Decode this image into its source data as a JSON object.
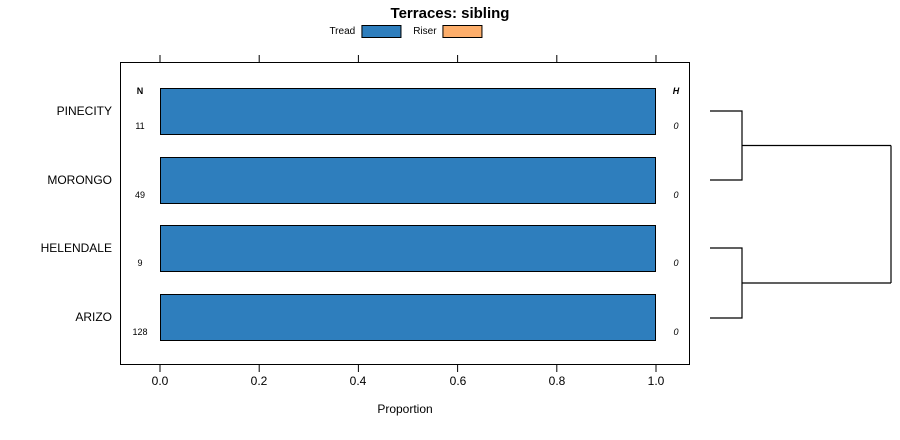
{
  "title": "Terraces: sibling",
  "legend": [
    {
      "label": "Tread",
      "color": "#2e7ebd"
    },
    {
      "label": "Riser",
      "color": "#fdae6b"
    }
  ],
  "columns": {
    "n_header": "N",
    "h_header": "H"
  },
  "axis": {
    "xlabel": "Proportion",
    "ticks": [
      "0.0",
      "0.2",
      "0.4",
      "0.6",
      "0.8",
      "1.0"
    ]
  },
  "rows": [
    {
      "label": "PINECITY",
      "n": "11",
      "h": "0",
      "value": 1.0
    },
    {
      "label": "MORONGO",
      "n": "49",
      "h": "0",
      "value": 1.0
    },
    {
      "label": "HELENDALE",
      "n": "9",
      "h": "0",
      "value": 1.0
    },
    {
      "label": "ARIZO",
      "n": "128",
      "h": "0",
      "value": 1.0
    }
  ],
  "chart_data": {
    "type": "bar",
    "orientation": "horizontal",
    "title": "Terraces: sibling",
    "xlabel": "Proportion",
    "xlim": [
      0,
      1
    ],
    "x_ticks": [
      0.0,
      0.2,
      0.4,
      0.6,
      0.8,
      1.0
    ],
    "categories": [
      "PINECITY",
      "MORONGO",
      "HELENDALE",
      "ARIZO"
    ],
    "series": [
      {
        "name": "Tread",
        "color": "#2e7ebd",
        "values": [
          1.0,
          1.0,
          1.0,
          1.0
        ]
      },
      {
        "name": "Riser",
        "color": "#fdae6b",
        "values": [
          0,
          0,
          0,
          0
        ]
      }
    ],
    "n_values": [
      11,
      49,
      9,
      128
    ],
    "h_values": [
      0,
      0,
      0,
      0
    ],
    "legend_position": "top",
    "grid": false,
    "dendrogram": {
      "side": "right",
      "merges": [
        [
          "PINECITY",
          "MORONGO"
        ],
        [
          "HELENDALE",
          "ARIZO"
        ],
        [
          "cluster-1",
          "cluster-2"
        ]
      ]
    }
  }
}
